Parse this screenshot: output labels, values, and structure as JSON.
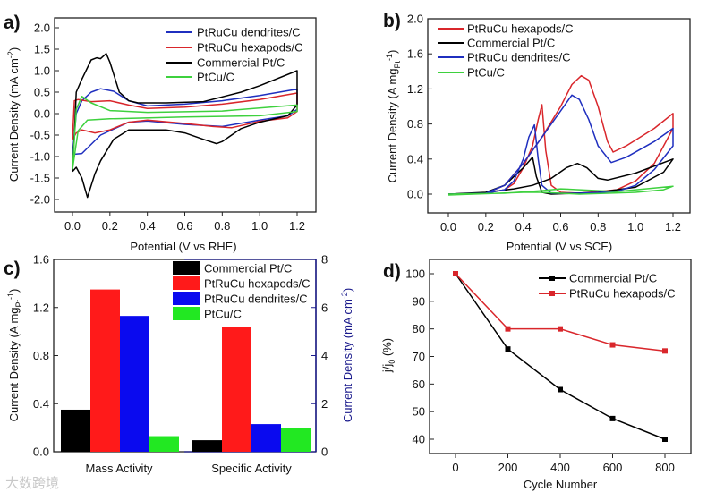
{
  "watermark": "大数跨境",
  "chart_data": [
    {
      "panel": "a)",
      "type": "line",
      "xlabel": "Potential (V vs RHE)",
      "ylabel": "Current Density (mA cm",
      "ylabel_sup": "-2",
      "ylabel_end": ")",
      "xlim": [
        -0.3,
        1.35
      ],
      "ylim": [
        -2.3,
        2.15
      ],
      "xticks": [
        "0.0",
        "0.2",
        "0.4",
        "0.6",
        "0.8",
        "1.0",
        "1.2"
      ],
      "yticks": [
        "-2.0",
        "-1.5",
        "-1.0",
        "-0.5",
        "0.0",
        "0.5",
        "1.0",
        "1.5",
        "2.0"
      ],
      "legend_position": "top-right",
      "series": [
        {
          "name": "PtRuCu dendrites/C",
          "color": "#1f2fbf",
          "points": [
            [
              0,
              -0.95
            ],
            [
              0.02,
              0
            ],
            [
              0.05,
              0.3
            ],
            [
              0.1,
              0.5
            ],
            [
              0.15,
              0.58
            ],
            [
              0.22,
              0.52
            ],
            [
              0.3,
              0.3
            ],
            [
              0.4,
              0.18
            ],
            [
              0.6,
              0.22
            ],
            [
              0.8,
              0.3
            ],
            [
              1.0,
              0.42
            ],
            [
              1.2,
              0.57
            ],
            [
              1.2,
              0.1
            ],
            [
              1.15,
              -0.05
            ],
            [
              1.0,
              -0.15
            ],
            [
              0.8,
              -0.3
            ],
            [
              0.6,
              -0.25
            ],
            [
              0.4,
              -0.17
            ],
            [
              0.3,
              -0.2
            ],
            [
              0.15,
              -0.5
            ],
            [
              0.05,
              -0.93
            ],
            [
              0,
              -0.95
            ]
          ]
        },
        {
          "name": "PtRuCu hexapods/C",
          "color": "#d9262b",
          "points": [
            [
              0,
              -0.6
            ],
            [
              0.01,
              0.3
            ],
            [
              0.03,
              0.33
            ],
            [
              0.1,
              0.28
            ],
            [
              0.2,
              0.3
            ],
            [
              0.3,
              0.2
            ],
            [
              0.4,
              0.12
            ],
            [
              0.6,
              0.15
            ],
            [
              0.8,
              0.22
            ],
            [
              1.0,
              0.33
            ],
            [
              1.2,
              0.48
            ],
            [
              1.2,
              0.05
            ],
            [
              1.15,
              -0.1
            ],
            [
              1.0,
              -0.18
            ],
            [
              0.85,
              -0.33
            ],
            [
              0.75,
              -0.3
            ],
            [
              0.6,
              -0.23
            ],
            [
              0.4,
              -0.15
            ],
            [
              0.3,
              -0.2
            ],
            [
              0.2,
              -0.38
            ],
            [
              0.12,
              -0.45
            ],
            [
              0.05,
              -0.38
            ],
            [
              0.02,
              -0.45
            ],
            [
              0,
              -0.6
            ]
          ]
        },
        {
          "name": "Commercial Pt/C",
          "color": "#000000",
          "points": [
            [
              0,
              -1.35
            ],
            [
              0.01,
              -0.5
            ],
            [
              0.02,
              0.5
            ],
            [
              0.05,
              0.8
            ],
            [
              0.1,
              1.25
            ],
            [
              0.13,
              1.3
            ],
            [
              0.15,
              1.28
            ],
            [
              0.18,
              1.4
            ],
            [
              0.2,
              1.2
            ],
            [
              0.25,
              0.5
            ],
            [
              0.3,
              0.3
            ],
            [
              0.35,
              0.25
            ],
            [
              0.5,
              0.25
            ],
            [
              0.7,
              0.28
            ],
            [
              0.9,
              0.5
            ],
            [
              1.0,
              0.65
            ],
            [
              1.2,
              1.0
            ],
            [
              1.2,
              0.2
            ],
            [
              1.15,
              -0.05
            ],
            [
              1.0,
              -0.2
            ],
            [
              0.9,
              -0.35
            ],
            [
              0.8,
              -0.65
            ],
            [
              0.77,
              -0.7
            ],
            [
              0.7,
              -0.6
            ],
            [
              0.6,
              -0.45
            ],
            [
              0.5,
              -0.38
            ],
            [
              0.3,
              -0.38
            ],
            [
              0.22,
              -0.6
            ],
            [
              0.15,
              -1.1
            ],
            [
              0.12,
              -1.4
            ],
            [
              0.08,
              -1.95
            ],
            [
              0.05,
              -1.5
            ],
            [
              0.02,
              -1.25
            ],
            [
              0,
              -1.35
            ]
          ]
        },
        {
          "name": "PtCu/C",
          "color": "#3ed13e",
          "points": [
            [
              0,
              -1.3
            ],
            [
              0.02,
              0.1
            ],
            [
              0.05,
              0.4
            ],
            [
              0.1,
              0.25
            ],
            [
              0.2,
              0.07
            ],
            [
              0.4,
              0.03
            ],
            [
              0.8,
              0.06
            ],
            [
              1.2,
              0.2
            ],
            [
              1.2,
              0.05
            ],
            [
              1.0,
              -0.05
            ],
            [
              0.6,
              -0.08
            ],
            [
              0.2,
              -0.12
            ],
            [
              0.08,
              -0.15
            ],
            [
              0.03,
              -0.4
            ],
            [
              0,
              -1.3
            ]
          ]
        }
      ]
    },
    {
      "panel": "b)",
      "type": "line",
      "xlabel": "Potential (V vs SCE)",
      "ylabel": "Current Density (A mg",
      "ylabel_sub": "Pt",
      "ylabel_sup": "-1",
      "ylabel_end": ")",
      "xlim": [
        -0.1,
        1.3
      ],
      "ylim": [
        -0.2,
        2.0
      ],
      "xticks": [
        "0.0",
        "0.2",
        "0.4",
        "0.6",
        "0.8",
        "1.0",
        "1.2"
      ],
      "yticks": [
        "0.0",
        "0.4",
        "0.8",
        "1.2",
        "1.6",
        "2.0"
      ],
      "legend_position": "top-left",
      "series": [
        {
          "name": "PtRuCu hexapods/C",
          "color": "#d9262b",
          "points": [
            [
              0,
              0
            ],
            [
              0.2,
              0.01
            ],
            [
              0.3,
              0.1
            ],
            [
              0.4,
              0.35
            ],
            [
              0.5,
              0.65
            ],
            [
              0.6,
              1.0
            ],
            [
              0.66,
              1.25
            ],
            [
              0.71,
              1.35
            ],
            [
              0.75,
              1.3
            ],
            [
              0.8,
              1.0
            ],
            [
              0.85,
              0.6
            ],
            [
              0.88,
              0.48
            ],
            [
              0.95,
              0.55
            ],
            [
              1.1,
              0.75
            ],
            [
              1.2,
              0.92
            ],
            [
              1.2,
              0.75
            ],
            [
              1.1,
              0.35
            ],
            [
              1.0,
              0.15
            ],
            [
              0.9,
              0.05
            ],
            [
              0.7,
              0.01
            ],
            [
              0.6,
              0.02
            ],
            [
              0.55,
              0.1
            ],
            [
              0.52,
              0.5
            ],
            [
              0.5,
              1.02
            ],
            [
              0.48,
              0.85
            ],
            [
              0.45,
              0.55
            ],
            [
              0.4,
              0.3
            ],
            [
              0.35,
              0.12
            ],
            [
              0.3,
              0.05
            ],
            [
              0.2,
              0.01
            ],
            [
              0,
              0
            ]
          ]
        },
        {
          "name": "Commercial Pt/C",
          "color": "#000000",
          "points": [
            [
              0,
              0
            ],
            [
              0.2,
              0.02
            ],
            [
              0.35,
              0.06
            ],
            [
              0.45,
              0.1
            ],
            [
              0.55,
              0.18
            ],
            [
              0.63,
              0.3
            ],
            [
              0.69,
              0.35
            ],
            [
              0.74,
              0.3
            ],
            [
              0.8,
              0.18
            ],
            [
              0.85,
              0.16
            ],
            [
              1.0,
              0.24
            ],
            [
              1.2,
              0.4
            ],
            [
              1.15,
              0.25
            ],
            [
              1.0,
              0.08
            ],
            [
              0.8,
              0.02
            ],
            [
              0.55,
              0.0
            ],
            [
              0.5,
              0.02
            ],
            [
              0.47,
              0.2
            ],
            [
              0.45,
              0.42
            ],
            [
              0.4,
              0.3
            ],
            [
              0.3,
              0.1
            ],
            [
              0.2,
              0.02
            ],
            [
              0,
              0
            ]
          ]
        },
        {
          "name": "PtRuCu dendrites/C",
          "color": "#1f2fbf",
          "points": [
            [
              0,
              0
            ],
            [
              0.2,
              0.01
            ],
            [
              0.3,
              0.1
            ],
            [
              0.4,
              0.35
            ],
            [
              0.5,
              0.65
            ],
            [
              0.6,
              0.95
            ],
            [
              0.66,
              1.13
            ],
            [
              0.7,
              1.08
            ],
            [
              0.75,
              0.85
            ],
            [
              0.8,
              0.55
            ],
            [
              0.87,
              0.36
            ],
            [
              0.95,
              0.42
            ],
            [
              1.1,
              0.6
            ],
            [
              1.2,
              0.75
            ],
            [
              1.2,
              0.55
            ],
            [
              1.1,
              0.28
            ],
            [
              1.0,
              0.1
            ],
            [
              0.9,
              0.03
            ],
            [
              0.7,
              0.01
            ],
            [
              0.55,
              0.01
            ],
            [
              0.5,
              0.1
            ],
            [
              0.48,
              0.4
            ],
            [
              0.46,
              0.79
            ],
            [
              0.43,
              0.65
            ],
            [
              0.4,
              0.4
            ],
            [
              0.35,
              0.15
            ],
            [
              0.3,
              0.05
            ],
            [
              0.2,
              0.01
            ],
            [
              0,
              0
            ]
          ]
        },
        {
          "name": "PtCu/C",
          "color": "#3ed13e",
          "points": [
            [
              0,
              0
            ],
            [
              0.3,
              0.01
            ],
            [
              0.5,
              0.04
            ],
            [
              0.6,
              0.06
            ],
            [
              0.7,
              0.05
            ],
            [
              0.9,
              0.03
            ],
            [
              1.2,
              0.09
            ],
            [
              1.15,
              0.05
            ],
            [
              1.0,
              0.02
            ],
            [
              0.7,
              0.0
            ],
            [
              0.5,
              0.02
            ],
            [
              0.4,
              0.02
            ],
            [
              0,
              -0.01
            ]
          ]
        }
      ]
    },
    {
      "panel": "c)",
      "type": "bar",
      "categories": [
        "Mass Activity",
        "Specific Activity"
      ],
      "ylabel": "Current Density (A mg",
      "ylabel_sub": "Pt",
      "ylabel_sup": "-1",
      "ylabel_end": ")",
      "ylabel_right": "Current Density (mA cm",
      "ylabel_right_sup": "-2",
      "ylabel_right_end": ")",
      "ylim": [
        0,
        1.6
      ],
      "ylim_right": [
        0,
        8
      ],
      "yticks": [
        "0.0",
        "0.4",
        "0.8",
        "1.2",
        "1.6"
      ],
      "yticks_right": [
        "0",
        "2",
        "4",
        "6",
        "8"
      ],
      "right_axis_color": "#1a1a8c",
      "legend_position": "top-right",
      "series": [
        {
          "name": "Commercial Pt/C",
          "color": "#000000",
          "values": [
            0.35,
            0.48
          ]
        },
        {
          "name": "PtRuCu hexapods/C",
          "color": "#ff1a1a",
          "values": [
            1.35,
            5.2
          ]
        },
        {
          "name": "PtRuCu dendrites/C",
          "color": "#0a0aef",
          "values": [
            1.13,
            1.15
          ]
        },
        {
          "name": "PtCu/C",
          "color": "#22e822",
          "values": [
            0.13,
            0.98
          ]
        }
      ],
      "value_units": [
        "A mg-1 (left axis)",
        "mA cm-2 (right axis)"
      ]
    },
    {
      "panel": "d)",
      "type": "line",
      "xlabel": "Cycle Number",
      "ylabel": "j/j",
      "ylabel_sub": "0",
      "ylabel_end": " (%)",
      "xlim": [
        -100,
        900
      ],
      "ylim": [
        35,
        105
      ],
      "xticks": [
        "0",
        "200",
        "400",
        "600",
        "800"
      ],
      "yticks": [
        "40",
        "50",
        "60",
        "70",
        "80",
        "90",
        "100"
      ],
      "legend_position": "top-right",
      "x": [
        0,
        200,
        400,
        600,
        800
      ],
      "series": [
        {
          "name": "Commercial Pt/C",
          "color": "#000000",
          "values": [
            100,
            72.7,
            58,
            47.5,
            40
          ]
        },
        {
          "name": "PtRuCu hexapods/C",
          "color": "#d9262b",
          "values": [
            100,
            80,
            80,
            74.2,
            72
          ]
        }
      ]
    }
  ]
}
